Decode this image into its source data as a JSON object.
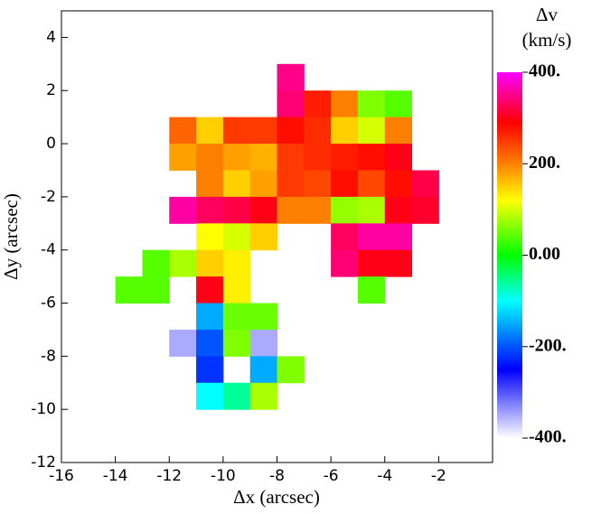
{
  "chart_data": {
    "type": "heatmap",
    "xlabel": "Δx (arcsec)",
    "ylabel": "Δy (arcsec)",
    "xlim": [
      -16,
      0
    ],
    "xticks": [
      -16,
      -14,
      -12,
      -10,
      -8,
      -6,
      -4,
      -2
    ],
    "ylim": [
      -12,
      5
    ],
    "yticks": [
      -12,
      -10,
      -8,
      -6,
      -4,
      -2,
      0,
      2,
      4
    ],
    "x": [
      -13.5,
      -12.5,
      -11.5,
      -10.5,
      -9.5,
      -8.5,
      -7.5,
      -6.5,
      -5.5,
      -4.5,
      -3.5,
      -2.5
    ],
    "y": [
      2.5,
      1.5,
      0.5,
      -0.5,
      -1.5,
      -2.5,
      -3.5,
      -4.5,
      -5.5,
      -6.5,
      -7.5,
      -8.5,
      -9.5
    ],
    "z": [
      [
        null,
        null,
        null,
        null,
        null,
        null,
        350,
        null,
        null,
        null,
        null,
        null
      ],
      [
        null,
        null,
        null,
        null,
        null,
        null,
        340,
        270,
        200,
        60,
        40,
        null
      ],
      [
        null,
        null,
        220,
        150,
        250,
        250,
        280,
        260,
        150,
        100,
        200,
        null
      ],
      [
        null,
        null,
        180,
        200,
        180,
        170,
        250,
        260,
        270,
        280,
        300,
        null
      ],
      [
        null,
        null,
        null,
        200,
        150,
        180,
        250,
        240,
        280,
        240,
        280,
        320
      ],
      [
        null,
        null,
        360,
        330,
        320,
        300,
        200,
        200,
        70,
        80,
        300,
        310
      ],
      [
        null,
        null,
        null,
        120,
        100,
        150,
        null,
        null,
        330,
        360,
        360,
        null
      ],
      [
        null,
        40,
        80,
        150,
        130,
        null,
        null,
        null,
        340,
        300,
        300,
        null
      ],
      [
        40,
        40,
        null,
        300,
        130,
        null,
        null,
        null,
        null,
        40,
        null,
        null
      ],
      [
        null,
        null,
        null,
        -150,
        50,
        50,
        null,
        null,
        null,
        null,
        null,
        null
      ],
      [
        null,
        null,
        -350,
        -200,
        60,
        -350,
        null,
        null,
        null,
        null,
        null,
        null
      ],
      [
        null,
        null,
        null,
        -220,
        null,
        -150,
        60,
        null,
        null,
        null,
        null,
        null
      ],
      [
        null,
        null,
        null,
        -100,
        -60,
        80,
        null,
        null,
        null,
        null,
        null,
        null
      ]
    ],
    "colorbar_label": [
      "Δv",
      "(km/s)"
    ],
    "clim": [
      -400,
      400
    ],
    "cticks": [
      {
        "value": 400,
        "label": "400."
      },
      {
        "value": 200,
        "label": "200."
      },
      {
        "value": 0,
        "label": "0.00"
      },
      {
        "value": -200,
        "label": "-200."
      },
      {
        "value": -400,
        "label": "-400."
      }
    ],
    "colorscale": [
      [
        -400,
        "#ffffff"
      ],
      [
        -250,
        "#0000ff"
      ],
      [
        -100,
        "#00ffff"
      ],
      [
        0,
        "#00ff00"
      ],
      [
        120,
        "#ffff00"
      ],
      [
        200,
        "#ff8000"
      ],
      [
        290,
        "#ff0000"
      ],
      [
        400,
        "#ff00ff"
      ]
    ]
  }
}
